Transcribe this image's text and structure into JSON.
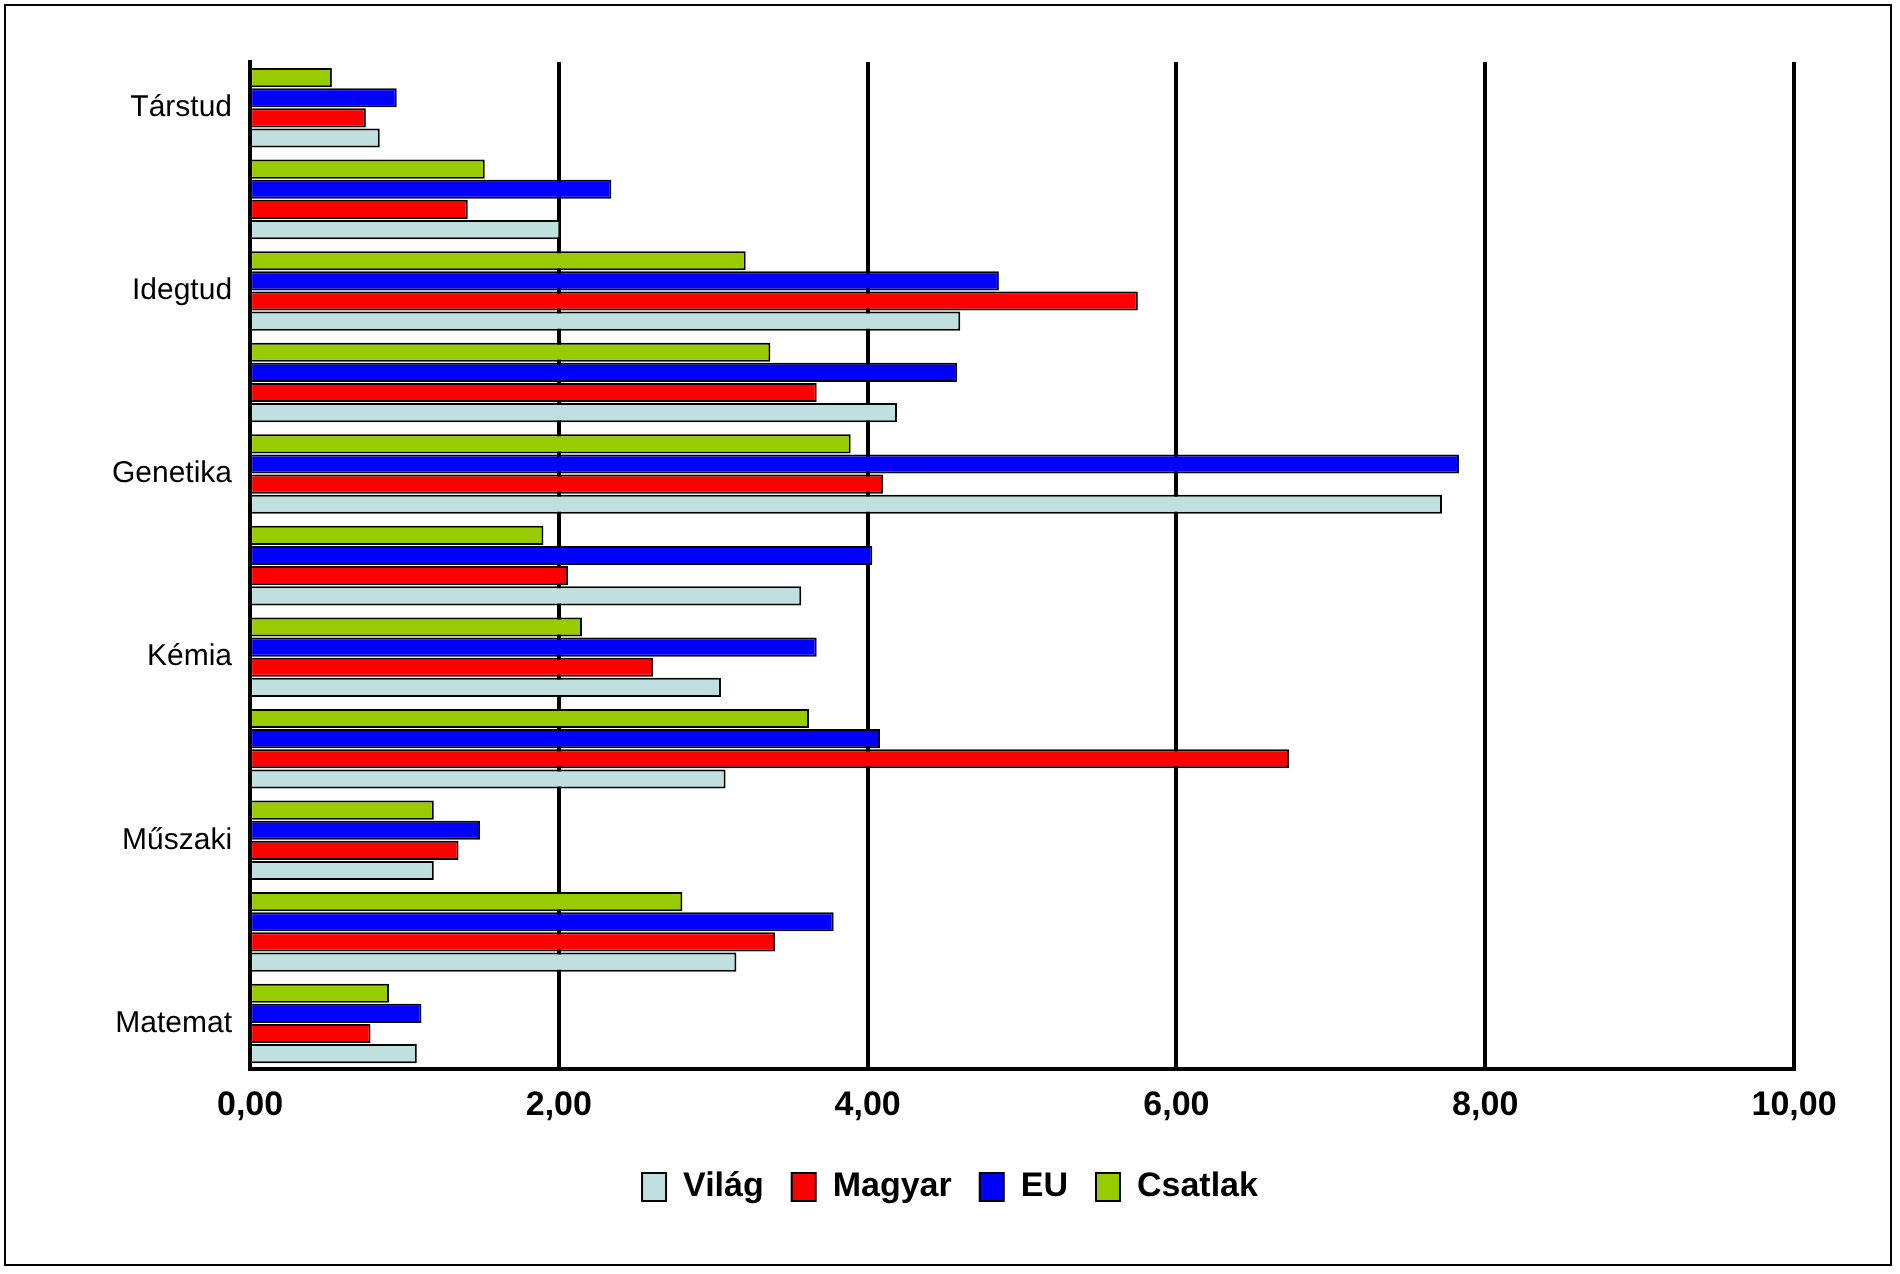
{
  "chart_data": {
    "type": "bar",
    "orientation": "horizontal",
    "categories": [
      "Társtud",
      null,
      "Idegtud",
      null,
      "Genetika",
      null,
      "Kémia",
      null,
      "Műszaki",
      null,
      "Matemat"
    ],
    "series": [
      {
        "name": "Világ",
        "color": "#c0e0e0",
        "values": [
          0.84,
          2.01,
          4.6,
          4.19,
          7.72,
          3.57,
          3.05,
          3.08,
          1.19,
          3.15,
          1.08
        ]
      },
      {
        "name": "Magyar",
        "color": "#ff0000",
        "values": [
          0.75,
          1.41,
          5.75,
          3.67,
          4.1,
          2.06,
          2.61,
          6.73,
          1.35,
          3.4,
          0.78
        ]
      },
      {
        "name": "EU",
        "color": "#0000ff",
        "values": [
          0.95,
          2.34,
          4.85,
          4.58,
          7.83,
          4.03,
          3.67,
          4.08,
          1.49,
          3.78,
          1.11
        ]
      },
      {
        "name": "Csatlak",
        "color": "#99cc00",
        "values": [
          0.53,
          1.52,
          3.21,
          3.37,
          3.89,
          1.9,
          2.15,
          3.62,
          1.19,
          2.8,
          0.9
        ]
      }
    ],
    "xlim": [
      0,
      10
    ],
    "xticks": [
      {
        "value": 0,
        "label": "0,00"
      },
      {
        "value": 2,
        "label": "2,00"
      },
      {
        "value": 4,
        "label": "4,00"
      },
      {
        "value": 6,
        "label": "6,00"
      },
      {
        "value": 8,
        "label": "8,00"
      },
      {
        "value": 10,
        "label": "10,00"
      }
    ],
    "grid": "x",
    "legend": "bottom"
  }
}
